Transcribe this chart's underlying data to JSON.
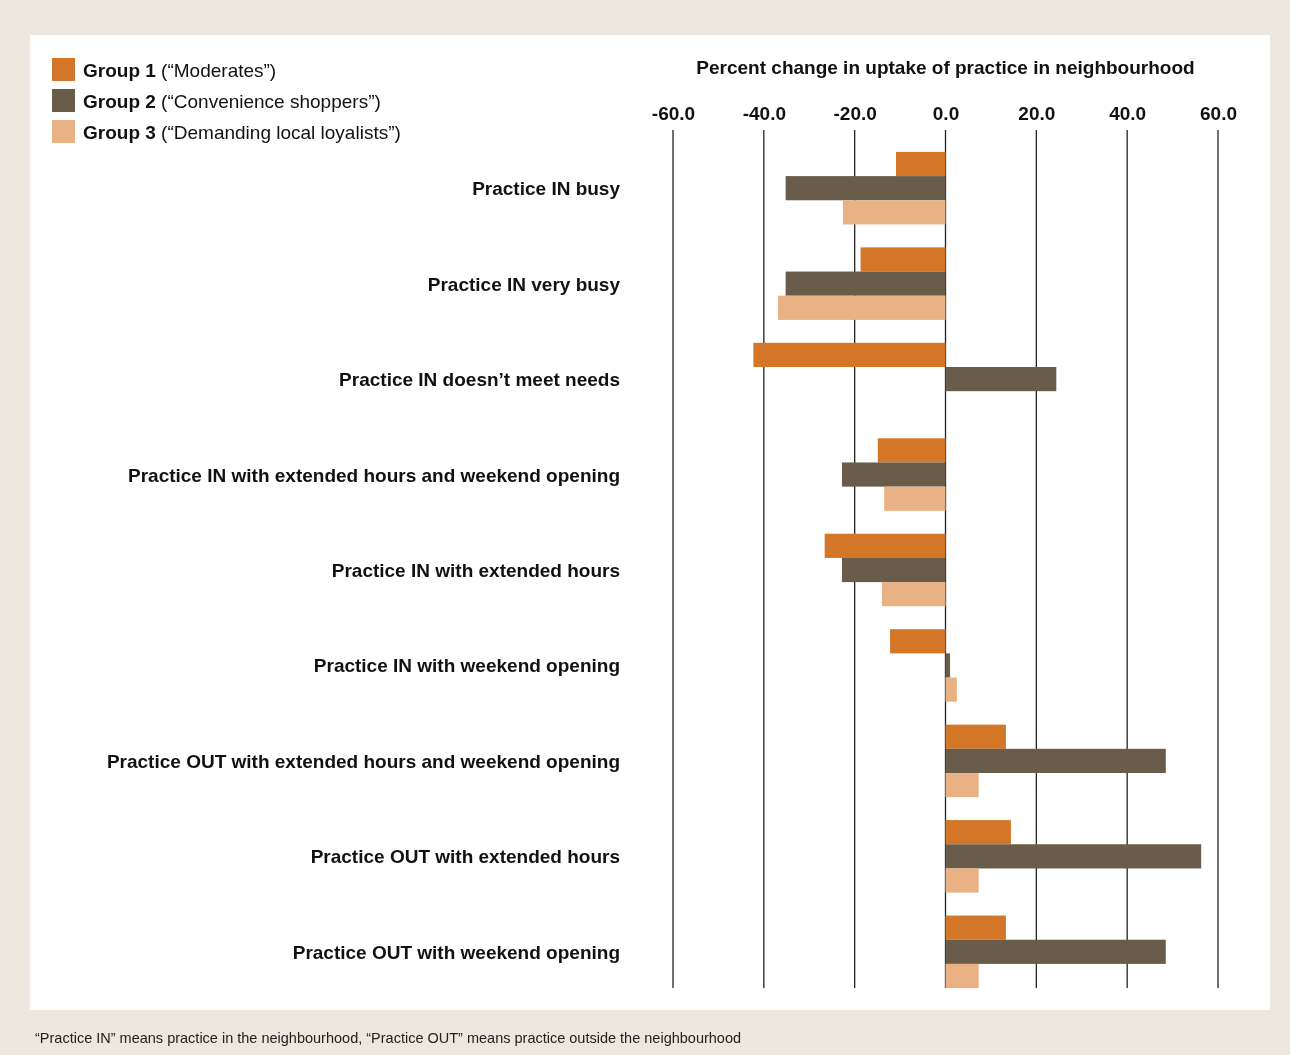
{
  "chart_data": {
    "type": "bar",
    "orientation": "horizontal",
    "xlabel": "Percent change in uptake of practice in neighbourhood",
    "categories": [
      "Practice IN busy",
      "Practice IN very busy",
      "Practice IN doesn’t meet needs",
      "Practice IN with extended hours and weekend opening",
      "Practice IN with extended hours",
      "Practice IN with weekend opening",
      "Practice OUT with extended hours and weekend opening",
      "Practice OUT with extended hours",
      "Practice OUT with weekend opening"
    ],
    "series": [
      {
        "name": "Group 1 (“Moderates”)",
        "color": "#d37627",
        "values": [
          -10.9,
          -18.7,
          -42.3,
          -14.9,
          -26.6,
          -12.2,
          13.3,
          14.4,
          13.3
        ]
      },
      {
        "name": "Group 2 (“Convenience shoppers”)",
        "color": "#695d49",
        "values": [
          -35.2,
          -35.2,
          24.4,
          -22.8,
          -22.8,
          1.0,
          48.5,
          56.3,
          48.5
        ]
      },
      {
        "name": "Group 3 (“Demanding local loyalists”)",
        "color": "#e8b285",
        "values": [
          -22.6,
          -36.9,
          null,
          -13.5,
          -14.0,
          2.5,
          7.3,
          7.3,
          7.3
        ]
      }
    ],
    "xlim": [
      -60,
      60
    ],
    "xticks": [
      {
        "value": -60,
        "label": "-60.0"
      },
      {
        "value": -40,
        "label": "-40.0"
      },
      {
        "value": -20,
        "label": "-20.0"
      },
      {
        "value": 0,
        "label": "0.0"
      },
      {
        "value": 20,
        "label": "20.0"
      },
      {
        "value": 40,
        "label": "40.0"
      },
      {
        "value": 60,
        "label": "60.0"
      }
    ],
    "grid": "x",
    "legend": "top left",
    "annotations": [
      "“Practice IN” means practice in the neighbourhood, “Practice OUT” means practice outside the neighbourhood"
    ]
  }
}
